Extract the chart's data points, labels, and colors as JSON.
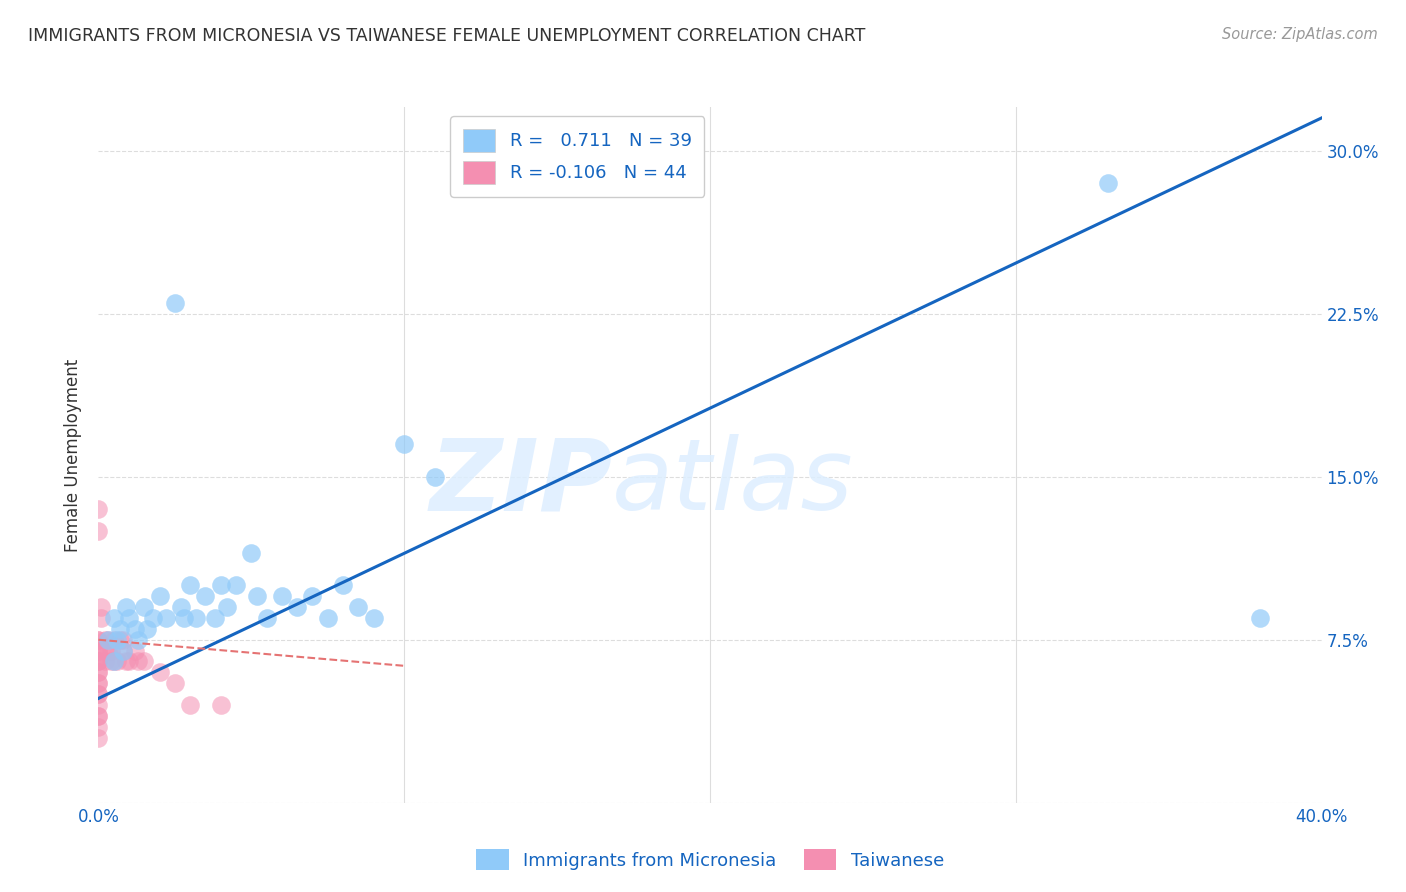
{
  "title": "IMMIGRANTS FROM MICRONESIA VS TAIWANESE FEMALE UNEMPLOYMENT CORRELATION CHART",
  "source": "Source: ZipAtlas.com",
  "xlabel_blue": "Immigrants from Micronesia",
  "xlabel_pink": "Taiwanese",
  "ylabel": "Female Unemployment",
  "watermark_zip": "ZIP",
  "watermark_atlas": "atlas",
  "xlim": [
    0.0,
    0.4
  ],
  "ylim": [
    0.0,
    0.32
  ],
  "xticks": [
    0.0,
    0.1,
    0.2,
    0.3,
    0.4
  ],
  "xtick_labels": [
    "0.0%",
    "",
    "",
    "",
    "40.0%"
  ],
  "ytick_labels_right": [
    "",
    "7.5%",
    "15.0%",
    "22.5%",
    "30.0%"
  ],
  "yticks": [
    0.0,
    0.075,
    0.15,
    0.225,
    0.3
  ],
  "blue_R": 0.711,
  "blue_N": 39,
  "pink_R": -0.106,
  "pink_N": 44,
  "blue_scatter_x": [
    0.003,
    0.005,
    0.005,
    0.006,
    0.007,
    0.008,
    0.009,
    0.01,
    0.012,
    0.013,
    0.015,
    0.016,
    0.018,
    0.02,
    0.022,
    0.025,
    0.027,
    0.028,
    0.03,
    0.032,
    0.035,
    0.038,
    0.04,
    0.042,
    0.045,
    0.05,
    0.052,
    0.055,
    0.06,
    0.065,
    0.07,
    0.075,
    0.08,
    0.085,
    0.09,
    0.1,
    0.11,
    0.33,
    0.38
  ],
  "blue_scatter_y": [
    0.075,
    0.085,
    0.065,
    0.075,
    0.08,
    0.07,
    0.09,
    0.085,
    0.08,
    0.075,
    0.09,
    0.08,
    0.085,
    0.095,
    0.085,
    0.23,
    0.09,
    0.085,
    0.1,
    0.085,
    0.095,
    0.085,
    0.1,
    0.09,
    0.1,
    0.115,
    0.095,
    0.085,
    0.095,
    0.09,
    0.095,
    0.085,
    0.1,
    0.09,
    0.085,
    0.165,
    0.15,
    0.285,
    0.085
  ],
  "pink_scatter_x": [
    0.0,
    0.0,
    0.0,
    0.0,
    0.0,
    0.0,
    0.0,
    0.0,
    0.0,
    0.0,
    0.0,
    0.0,
    0.0,
    0.0,
    0.0,
    0.0,
    0.0,
    0.0,
    0.0,
    0.0,
    0.001,
    0.001,
    0.002,
    0.002,
    0.002,
    0.003,
    0.003,
    0.004,
    0.004,
    0.005,
    0.005,
    0.006,
    0.007,
    0.008,
    0.008,
    0.009,
    0.01,
    0.012,
    0.013,
    0.015,
    0.02,
    0.025,
    0.03,
    0.04
  ],
  "pink_scatter_y": [
    0.135,
    0.125,
    0.075,
    0.075,
    0.07,
    0.07,
    0.065,
    0.065,
    0.065,
    0.06,
    0.06,
    0.055,
    0.055,
    0.05,
    0.05,
    0.045,
    0.04,
    0.04,
    0.035,
    0.03,
    0.09,
    0.085,
    0.075,
    0.07,
    0.065,
    0.075,
    0.07,
    0.07,
    0.065,
    0.075,
    0.065,
    0.065,
    0.075,
    0.075,
    0.07,
    0.065,
    0.065,
    0.07,
    0.065,
    0.065,
    0.06,
    0.055,
    0.045,
    0.045
  ],
  "blue_line_x": [
    0.0,
    0.4
  ],
  "blue_line_y": [
    0.048,
    0.315
  ],
  "pink_line_x": [
    0.0,
    0.1
  ],
  "pink_line_y": [
    0.075,
    0.063
  ],
  "blue_color": "#90caf9",
  "pink_color": "#f48fb1",
  "blue_line_color": "#1565C0",
  "pink_line_color": "#e57373",
  "grid_color": "#dddddd",
  "bg_color": "#ffffff",
  "title_color": "#333333",
  "axis_label_blue_color": "#1565C0",
  "right_tick_color": "#1565C0"
}
